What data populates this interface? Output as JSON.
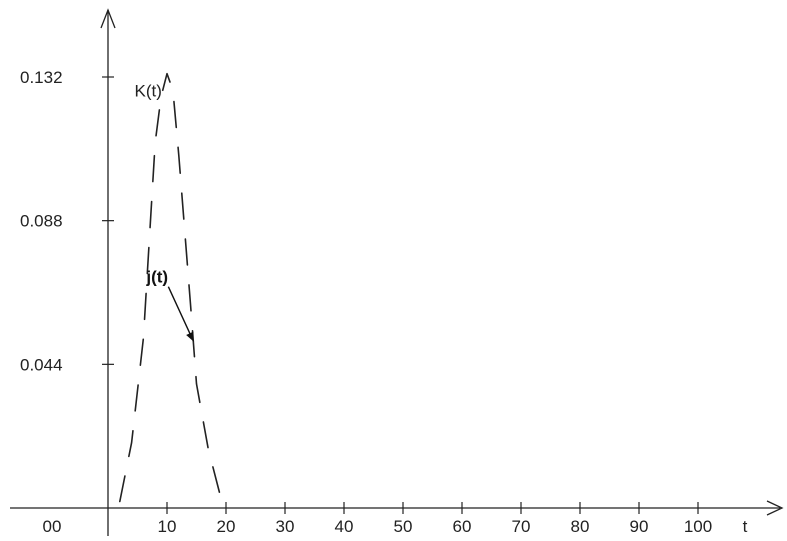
{
  "chart_data": {
    "type": "line",
    "title": "",
    "xlabel": "t",
    "ylabel": "",
    "xlim": [
      0,
      110
    ],
    "ylim": [
      0,
      0.132
    ],
    "x_ticks": [
      10,
      20,
      30,
      40,
      50,
      60,
      70,
      80,
      90,
      100
    ],
    "x_tick_labels": [
      "10",
      "20",
      "30",
      "40",
      "50",
      "60",
      "70",
      "80",
      "90",
      "100"
    ],
    "y_ticks": [
      0.044,
      0.088,
      0.132
    ],
    "y_tick_labels": [
      "0.044",
      "0.088",
      "0.132"
    ],
    "origin_label": "00",
    "grid": false,
    "legend": "none",
    "colors": {
      "axis": "#222222",
      "curve": "#222222"
    },
    "annotations": [
      {
        "text": "K(t)",
        "weight": "normal",
        "x": 4.5,
        "y": 0.126,
        "points_to": null
      },
      {
        "text": "j(t)",
        "weight": "bold",
        "x": 6.5,
        "y": 0.069,
        "points_to": {
          "x": 14.5,
          "y": 0.051
        }
      }
    ],
    "series": [
      {
        "style": "dashed",
        "x": [
          2,
          4,
          6,
          8,
          9,
          10,
          11,
          12,
          13,
          14,
          15,
          17,
          19,
          20
        ],
        "y": [
          0.002,
          0.02,
          0.052,
          0.112,
          0.126,
          0.133,
          0.128,
          0.108,
          0.085,
          0.062,
          0.038,
          0.018,
          0.004,
          0.001
        ]
      }
    ]
  }
}
